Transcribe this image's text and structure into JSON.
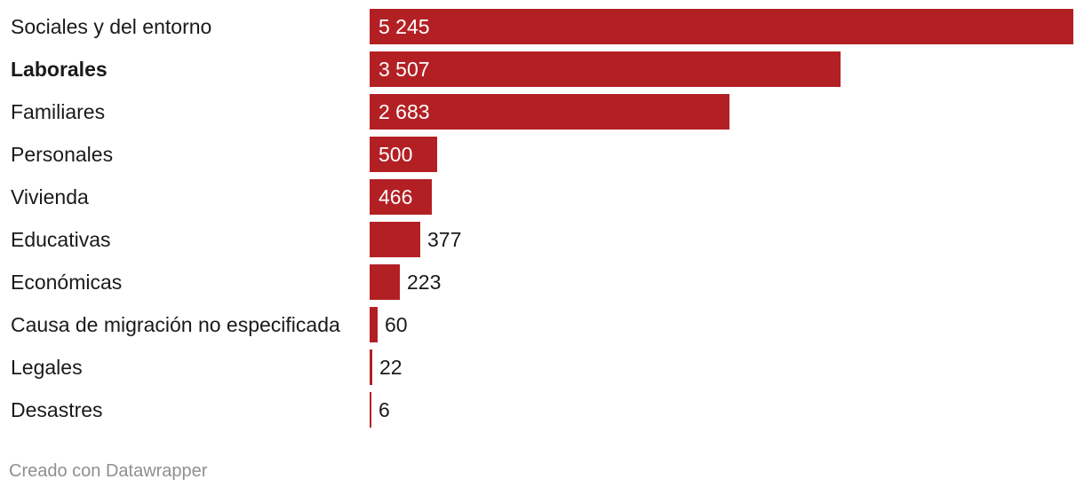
{
  "chart_data": {
    "type": "bar",
    "orientation": "horizontal",
    "title": "",
    "xlabel": "",
    "ylabel": "",
    "xlim": [
      0,
      5245
    ],
    "bar_color": "#b32024",
    "categories": [
      "Sociales y del entorno",
      "Laborales",
      "Familiares",
      "Personales",
      "Vivienda",
      "Educativas",
      "Económicas",
      "Causa de migración no especificada",
      "Legales",
      "Desastres"
    ],
    "values": [
      5245,
      3507,
      2683,
      500,
      466,
      377,
      223,
      60,
      22,
      6
    ],
    "value_labels": [
      "5 245",
      "3 507",
      "2 683",
      "500",
      "466",
      "377",
      "223",
      "60",
      "22",
      "6"
    ],
    "bold_categories": [
      "Laborales"
    ]
  },
  "footer": {
    "credit": "Creado con Datawrapper"
  }
}
